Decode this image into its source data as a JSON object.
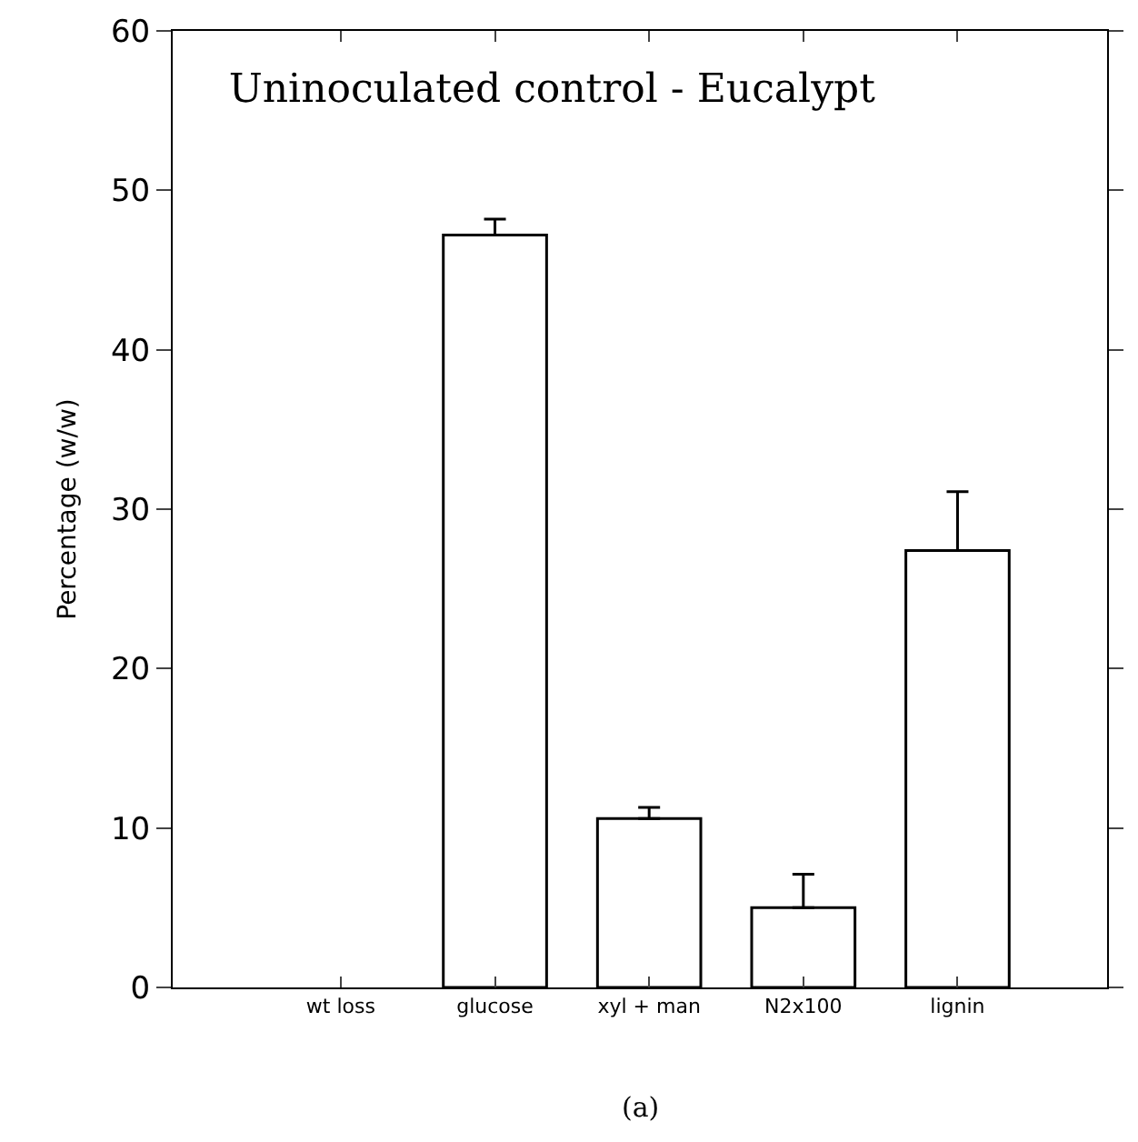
{
  "chart_data": {
    "type": "bar",
    "title": "Uninoculated control - Eucalypt",
    "ylabel": "Percentage (w/w)",
    "categories": [
      "wt loss",
      "glucose",
      "xyl + man",
      "N2x100",
      "lignin"
    ],
    "values": [
      null,
      47.2,
      10.6,
      5.0,
      27.4
    ],
    "errors": [
      null,
      [
        47.2,
        48.2
      ],
      [
        10.6,
        11.3
      ],
      [
        5.0,
        7.1
      ],
      [
        27.4,
        31.1
      ]
    ],
    "color": "#ffffff",
    "ylim": [
      0,
      60
    ],
    "yticks": [
      0,
      10,
      20,
      30,
      40,
      50,
      60
    ],
    "annotations": [
      "(a)"
    ]
  }
}
